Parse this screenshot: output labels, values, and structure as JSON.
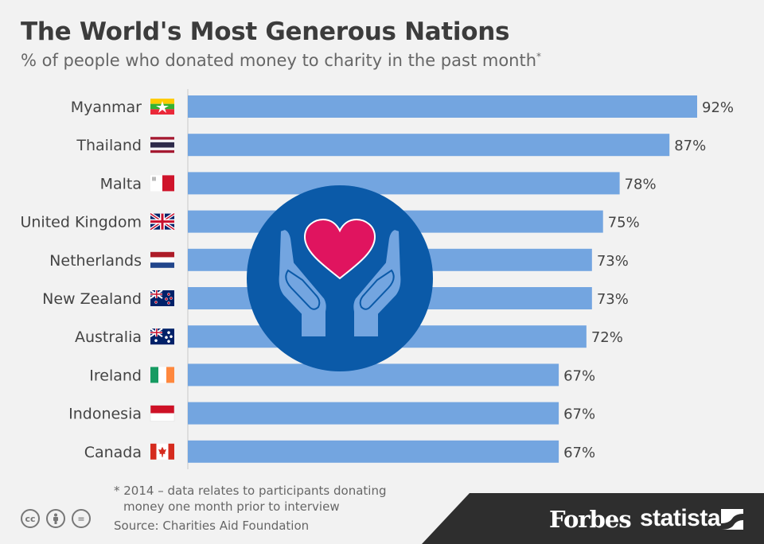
{
  "header": {
    "title": "The World's Most Generous Nations",
    "subtitle": "% of people who donated money to charity in the past month",
    "subtitle_marker": "*"
  },
  "chart_data": {
    "type": "bar",
    "orientation": "horizontal",
    "title": "The World's Most Generous Nations",
    "ylabel": "% of people who donated money to charity in the past month",
    "categories": [
      "Myanmar",
      "Thailand",
      "Malta",
      "United Kingdom",
      "Netherlands",
      "New Zealand",
      "Australia",
      "Ireland",
      "Indonesia",
      "Canada"
    ],
    "values": [
      92,
      87,
      78,
      75,
      73,
      73,
      72,
      67,
      67,
      67
    ],
    "value_labels": [
      "92%",
      "87%",
      "78%",
      "75%",
      "73%",
      "73%",
      "72%",
      "67%",
      "67%",
      "67%"
    ],
    "xlim": [
      0,
      100
    ],
    "bar_color": "#73a5e0",
    "flags": [
      "myanmar-flag",
      "thailand-flag",
      "malta-flag",
      "uk-flag",
      "netherlands-flag",
      "new-zealand-flag",
      "australia-flag",
      "ireland-flag",
      "indonesia-flag",
      "canada-flag"
    ]
  },
  "overlay": {
    "icon": "heart-in-hands-icon",
    "circle_color": "#0b5aa8",
    "heart_color": "#e0145f",
    "hands_color": "#73a5e0"
  },
  "footer": {
    "footnote_line1": "* 2014 – data relates to participants donating",
    "footnote_line2": "money one month prior to interview",
    "source": "Source: Charities Aid Foundation",
    "forbes": "Forbes",
    "statista": "statista",
    "cc_icons": [
      "cc",
      "by",
      "="
    ]
  }
}
